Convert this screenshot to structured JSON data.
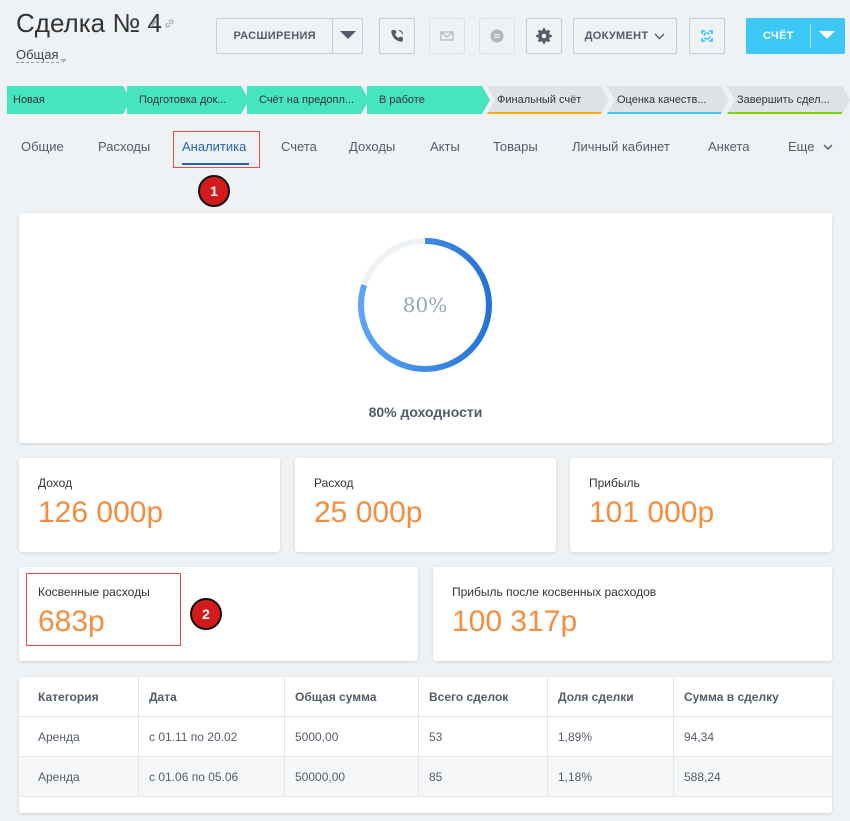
{
  "header": {
    "title": "Сделка № 4",
    "subtitle": "Общая",
    "extensions_label": "РАСШИРЕНИЯ",
    "document_label": "ДОКУМЕНТ",
    "invoice_label": "СЧЁТ"
  },
  "stages": [
    {
      "label": "Новая",
      "state": "active",
      "color": "#47e4c2"
    },
    {
      "label": "Подготовка док...",
      "state": "active",
      "color": "#47e4c2"
    },
    {
      "label": "Счёт на предопл...",
      "state": "active",
      "color": "#47e4c2"
    },
    {
      "label": "В работе",
      "state": "active",
      "color": "#47e4c2"
    },
    {
      "label": "Финальный счёт",
      "state": "inactive",
      "accent": "#ffa900"
    },
    {
      "label": "Оценка качеств...",
      "state": "inactive",
      "accent": "#3bc8f5"
    },
    {
      "label": "Завершить сдел...",
      "state": "inactive",
      "accent": "#7bd500"
    }
  ],
  "tabs": [
    "Общие",
    "Расходы",
    "Аналитика",
    "Счета",
    "Доходы",
    "Акты",
    "Товары",
    "Личный кабинет",
    "Анкета",
    "Еще"
  ],
  "active_tab": "Аналитика",
  "markers": [
    "1",
    "2"
  ],
  "profitability": {
    "percent_value": 80,
    "percent_text": "80%",
    "caption": "80% доходности",
    "ring_color": "#2f80ed",
    "track_color": "#eef2f4"
  },
  "stats": {
    "income": {
      "label": "Доход",
      "value": "126 000р"
    },
    "expense": {
      "label": "Расход",
      "value": "25 000р"
    },
    "profit": {
      "label": "Прибыль",
      "value": "101 000р"
    },
    "indirect": {
      "label": "Косвенные расходы",
      "value": "683р"
    },
    "profit_after": {
      "label": "Прибыль после косвенных расходов",
      "value": "100 317р"
    }
  },
  "accent_color": "#f58d3f",
  "table": {
    "headers": [
      "Категория",
      "Дата",
      "Общая сумма",
      "Всего сделок",
      "Доля сделки",
      "Сумма в сделку"
    ],
    "rows": [
      [
        "Аренда",
        "с 01.11 по 20.02",
        "5000,00",
        "53",
        "1,89%",
        "94,34"
      ],
      [
        "Аренда",
        "с 01.06 по 05.06",
        "50000,00",
        "85",
        "1,18%",
        "588,24"
      ]
    ]
  }
}
